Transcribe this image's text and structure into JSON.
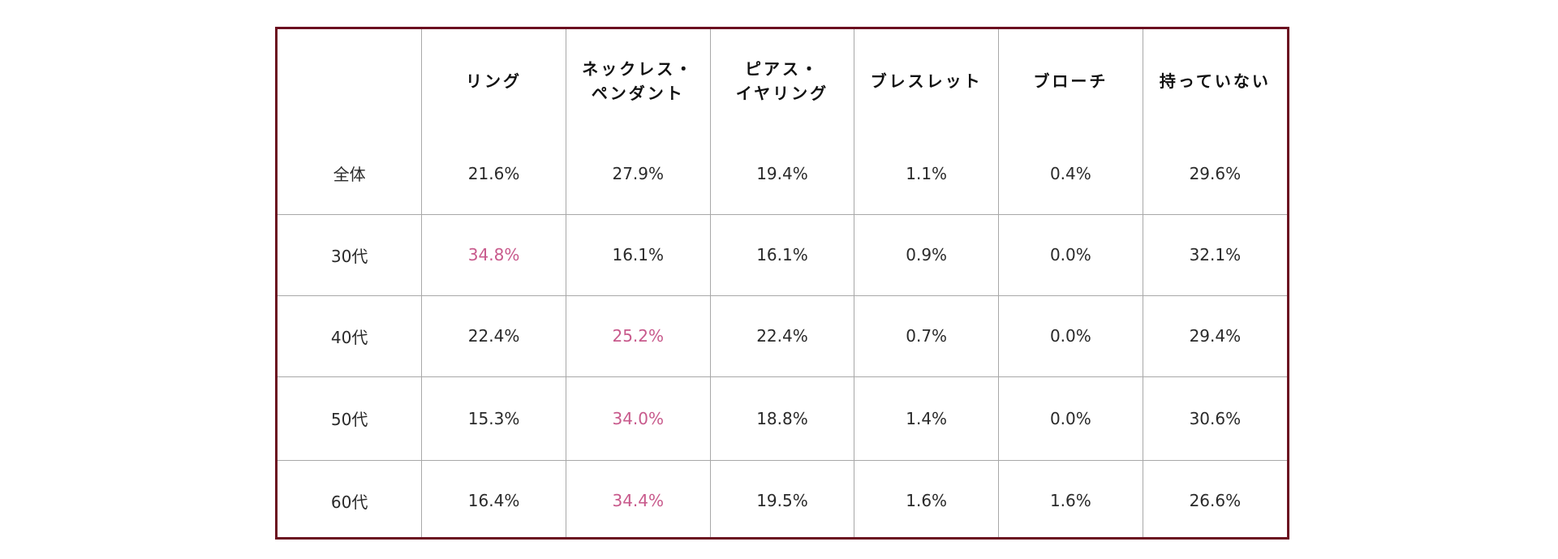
{
  "chart_data": {
    "type": "table",
    "columns": [
      "",
      "リング",
      [
        "ネックレス・",
        "ペンダント"
      ],
      [
        "ピアス・",
        "イヤリング"
      ],
      "ブレスレット",
      "ブローチ",
      "持っていない"
    ],
    "rows": [
      {
        "label": "全体",
        "values": [
          "21.6%",
          "27.9%",
          "19.4%",
          "1.1%",
          "0.4%",
          "29.6%"
        ],
        "highlight": []
      },
      {
        "label": "30代",
        "values": [
          "34.8%",
          "16.1%",
          "16.1%",
          "0.9%",
          "0.0%",
          "32.1%"
        ],
        "highlight": [
          0
        ]
      },
      {
        "label": "40代",
        "values": [
          "22.4%",
          "25.2%",
          "22.4%",
          "0.7%",
          "0.0%",
          "29.4%"
        ],
        "highlight": [
          1
        ]
      },
      {
        "label": "50代",
        "values": [
          "15.3%",
          "34.0%",
          "18.8%",
          "1.4%",
          "0.0%",
          "30.6%"
        ],
        "highlight": [
          1
        ]
      },
      {
        "label": "60代",
        "values": [
          "16.4%",
          "34.4%",
          "19.5%",
          "1.6%",
          "1.6%",
          "26.6%"
        ],
        "highlight": [
          1
        ]
      }
    ],
    "colors": {
      "border": "#6b1020",
      "grid": "#a8a8a8",
      "text": "#2a2a2a",
      "highlight": "#c85a8c"
    }
  }
}
